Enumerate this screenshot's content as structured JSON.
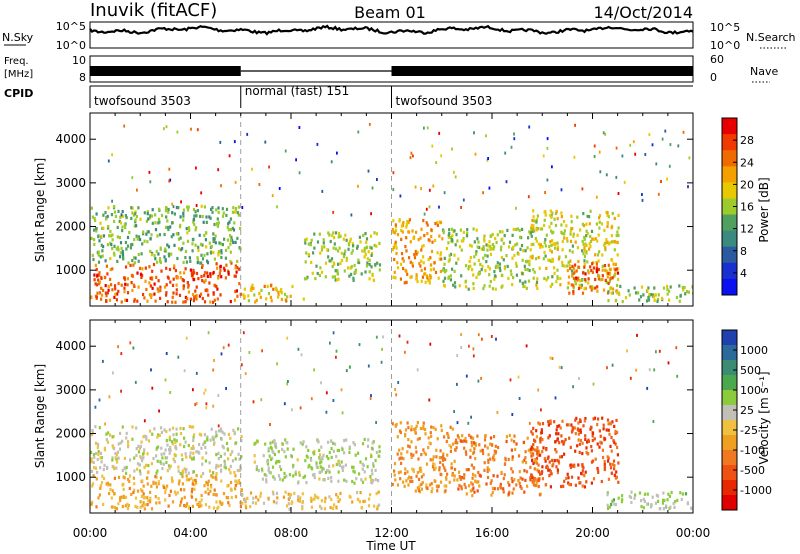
{
  "header": {
    "station": "Inuvik (fitACF)",
    "beam": "Beam 01",
    "date": "14/Oct/2014"
  },
  "strips": {
    "nsky": {
      "left_label": "N.Sky",
      "left_ticks": [
        "10^5",
        "10^0"
      ],
      "right_ticks": [
        "10^5",
        "10^0"
      ],
      "right_label": "N.Search"
    },
    "freq": {
      "left_label_1": "Freq.",
      "left_label_2": "[MHz]",
      "left_ticks": [
        "10",
        "8"
      ],
      "right_ticks": [
        "60",
        "0"
      ],
      "right_label": "Nave"
    },
    "cpid": {
      "label": "CPID",
      "segments": [
        {
          "label": "twofsound 3503",
          "start_h": 0,
          "end_h": 6
        },
        {
          "label": "normal (fast) 151",
          "start_h": 6,
          "end_h": 12
        },
        {
          "label": "twofsound 3503",
          "start_h": 12,
          "end_h": 24
        }
      ]
    }
  },
  "axes": {
    "ylabel": "Slant Range [km]",
    "xlabel": "Time UT",
    "yticks": [
      "4000",
      "3000",
      "2000",
      "1000"
    ],
    "xticks": [
      "00:00",
      "04:00",
      "08:00",
      "12:00",
      "16:00",
      "20:00",
      "00:00"
    ]
  },
  "colorbars": {
    "power": {
      "label": "Power [dB]",
      "ticks": [
        "28",
        "24",
        "20",
        "16",
        "12",
        "8",
        "4"
      ],
      "colors": [
        "#e80000",
        "#f03a00",
        "#f06a00",
        "#f4a000",
        "#e8c800",
        "#9ccc2c",
        "#50a060",
        "#3a8a80",
        "#2c5aa0",
        "#1830d0",
        "#0a10f0"
      ]
    },
    "velocity": {
      "label": "Velocity [m s⁻¹]",
      "ticks": [
        "1000",
        "500",
        "100",
        "25",
        "-25",
        "-100",
        "-500",
        "-1000"
      ],
      "colors": [
        "#2040b0",
        "#2c6a9c",
        "#3c8c74",
        "#4ca84c",
        "#8ccc3c",
        "#c0c0b8",
        "#f0c040",
        "#f0a020",
        "#f07820",
        "#f05010",
        "#e82800",
        "#e00000"
      ]
    }
  },
  "chart_data": {
    "type": "heatmap",
    "title": "Inuvik (fitACF) Beam 01 14/Oct/2014",
    "xlabel": "Time UT",
    "ylabel": "Slant Range [km]",
    "xlim": [
      0,
      24
    ],
    "ylim": [
      180,
      4600
    ],
    "mode_changes_h": [
      6,
      12
    ],
    "panels": [
      {
        "name": "Power [dB]",
        "colorbar_range": [
          0,
          32
        ],
        "regions": [
          {
            "t": [
              0,
              6
            ],
            "range_km": [
              300,
              1200
            ],
            "value": 26
          },
          {
            "t": [
              0,
              6
            ],
            "range_km": [
              1200,
              2500
            ],
            "value": 14
          },
          {
            "t": [
              6,
              8.5
            ],
            "range_km": [
              300,
              700
            ],
            "value": 20
          },
          {
            "t": [
              8.5,
              11.5
            ],
            "range_km": [
              800,
              1900
            ],
            "value": 16
          },
          {
            "t": [
              12,
              14
            ],
            "range_km": [
              700,
              2200
            ],
            "value": 22
          },
          {
            "t": [
              14,
              17.5
            ],
            "range_km": [
              600,
              2000
            ],
            "value": 16
          },
          {
            "t": [
              17.5,
              21
            ],
            "range_km": [
              600,
              2400
            ],
            "value": 18
          },
          {
            "t": [
              19,
              21
            ],
            "range_km": [
              500,
              1200
            ],
            "value": 26
          },
          {
            "t": [
              20.5,
              24
            ],
            "range_km": [
              300,
              700
            ],
            "value": 16
          }
        ]
      },
      {
        "name": "Velocity [m s-1]",
        "colorbar_range": [
          -1000,
          1000
        ],
        "regions": [
          {
            "t": [
              0,
              6
            ],
            "range_km": [
              300,
              1100
            ],
            "value": -200
          },
          {
            "t": [
              0,
              6
            ],
            "range_km": [
              1100,
              2200
            ],
            "value": 80
          },
          {
            "t": [
              6,
              11.5
            ],
            "range_km": [
              300,
              700
            ],
            "value": -100
          },
          {
            "t": [
              6.5,
              11.5
            ],
            "range_km": [
              900,
              1900
            ],
            "value": 150
          },
          {
            "t": [
              12,
              14.5
            ],
            "range_km": [
              700,
              2300
            ],
            "value": -300
          },
          {
            "t": [
              14.5,
              18
            ],
            "range_km": [
              600,
              2000
            ],
            "value": -400
          },
          {
            "t": [
              17.5,
              21
            ],
            "range_km": [
              800,
              2400
            ],
            "value": -600
          },
          {
            "t": [
              20.5,
              24
            ],
            "range_km": [
              300,
              700
            ],
            "value": 200
          }
        ]
      }
    ]
  }
}
